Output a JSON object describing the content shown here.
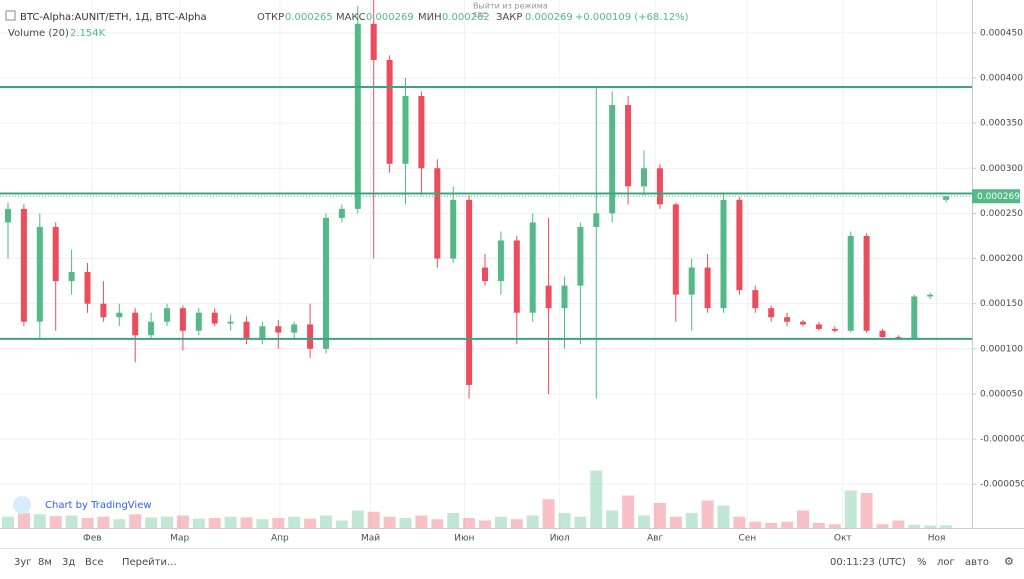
{
  "chart_data": {
    "type": "candlestick",
    "title": "BTC-Alpha:AUNIT/ETH, 1Д, BTC-Alpha",
    "open_label": "ОТКР",
    "high_label": "МАКС",
    "low_label": "МИН",
    "close_label": "ЗАКР",
    "change": "+0.000109 (+68.12%)",
    "volume_title": "Volume (20)",
    "volume_value": "2.154K",
    "replay_exit": "Выйти из режима",
    "replay_key": "ESC",
    "watermark": "Chart by TradingView",
    "up_color": "#53b987",
    "down_color": "#eb4d5c",
    "line_color": "#3aa57f",
    "ylim": [
      -9.85e-05,
      0.0004864
    ],
    "yticks": [
      {
        "value": 0.00045,
        "label": "0.000450"
      },
      {
        "value": 0.0004,
        "label": "0.000400"
      },
      {
        "value": 0.00035,
        "label": "0.000350"
      },
      {
        "value": 0.0003,
        "label": "0.000300"
      },
      {
        "value": 0.00025,
        "label": "0.000250"
      },
      {
        "value": 0.0002,
        "label": "0.000200"
      },
      {
        "value": 0.00015,
        "label": "0.000150"
      },
      {
        "value": 0.0001,
        "label": "0.000100"
      },
      {
        "value": 5e-05,
        "label": "0.000050"
      },
      {
        "value": 0,
        "label": "-0.000000"
      },
      {
        "value": -5e-05,
        "label": "-0.000050"
      }
    ],
    "xticks": [
      {
        "value": 5.3,
        "label": "Фев"
      },
      {
        "value": 10.8,
        "label": "Мар"
      },
      {
        "value": 17.1,
        "label": "Апр"
      },
      {
        "value": 22.8,
        "label": "Май"
      },
      {
        "value": 28.7,
        "label": "Июн"
      },
      {
        "value": 34.7,
        "label": "Июл"
      },
      {
        "value": 40.7,
        "label": "Авг"
      },
      {
        "value": 46.5,
        "label": "Сен"
      },
      {
        "value": 52.5,
        "label": "Окт"
      },
      {
        "value": 58.4,
        "label": "Ноя"
      }
    ],
    "hlines": [
      0.00039,
      0.000272,
      0.000111
    ],
    "grid": true,
    "open": [
      0.00024,
      0.000255,
      0.00013,
      0.000235,
      0.000175,
      0.000185,
      0.00015,
      0.000135,
      0.00014,
      0.000115,
      0.00013,
      0.000145,
      0.00012,
      0.00014,
      0.000128,
      0.00013,
      0.000112,
      0.000125,
      0.000118,
      0.000127,
      0.0001,
      0.000245,
      0.000255,
      0.00046,
      0.00042,
      0.000305,
      0.00038,
      0.0003,
      0.0002,
      0.000265,
      0.00019,
      0.000175,
      0.00022,
      0.00014,
      0.00017,
      0.000145,
      0.00017,
      0.000235,
      0.00025,
      0.00037,
      0.00028,
      0.0003,
      0.00026,
      0.00016,
      0.00019,
      0.000145,
      0.000265,
      0.000165,
      0.000145,
      0.000135,
      0.00013,
      0.000127,
      0.000122,
      0.00012,
      0.000225,
      0.00012,
      0.000113,
      0.000112,
      0.000158,
      0.000265
    ],
    "high": [
      0.000262,
      0.00026,
      0.00025,
      0.00024,
      0.00021,
      0.000195,
      0.000175,
      0.00015,
      0.000145,
      0.00014,
      0.00015,
      0.000148,
      0.000145,
      0.000145,
      0.000138,
      0.000136,
      0.00013,
      0.000132,
      0.00013,
      0.00015,
      0.00025,
      0.00026,
      0.00048,
      0.00049,
      0.000425,
      0.0004,
      0.000385,
      0.00031,
      0.00028,
      0.00027,
      0.000205,
      0.00023,
      0.000225,
      0.00025,
      0.000245,
      0.00018,
      0.00024,
      0.00039,
      0.000385,
      0.00038,
      0.00032,
      0.000305,
      0.000262,
      0.0002,
      0.000205,
      0.000272,
      0.000268,
      0.00017,
      0.000148,
      0.00014,
      0.000132,
      0.00013,
      0.000125,
      0.00023,
      0.000228,
      0.000122,
      0.000115,
      0.00016,
      0.000162,
      0.000269
    ],
    "low": [
      0.0002,
      0.000125,
      0.00011,
      0.00012,
      0.00016,
      0.00014,
      0.00013,
      0.000125,
      8.5e-05,
      0.00011,
      0.000125,
      9.8e-05,
      0.000115,
      0.000125,
      0.00012,
      0.000105,
      0.000105,
      0.0001,
      0.00011,
      9e-05,
      9.5e-05,
      0.00024,
      0.00025,
      0.0002,
      0.000295,
      0.00026,
      0.00027,
      0.00019,
      0.000195,
      4.5e-05,
      0.00017,
      0.00016,
      0.000105,
      0.00013,
      5e-05,
      0.0001,
      0.000105,
      4.5e-05,
      0.00024,
      0.00026,
      0.00027,
      0.000255,
      0.00013,
      0.00012,
      0.00014,
      0.00014,
      0.00016,
      0.00014,
      0.00013,
      0.000125,
      0.000125,
      0.00012,
      0.000118,
      0.000118,
      0.000118,
      0.000112,
      0.00011,
      0.00011,
      0.000155,
      0.000262
    ],
    "close": [
      0.000255,
      0.00013,
      0.000235,
      0.000175,
      0.000185,
      0.00015,
      0.000135,
      0.00014,
      0.000115,
      0.00013,
      0.000145,
      0.00012,
      0.00014,
      0.000128,
      0.00013,
      0.000112,
      0.000125,
      0.000118,
      0.000127,
      0.0001,
      0.000245,
      0.000255,
      0.00046,
      0.00042,
      0.000305,
      0.00038,
      0.0003,
      0.0002,
      0.000265,
      6e-05,
      0.000175,
      0.00022,
      0.00014,
      0.00024,
      0.000145,
      0.00017,
      0.000235,
      0.00025,
      0.00037,
      0.00028,
      0.0003,
      0.00026,
      0.00016,
      0.00019,
      0.000145,
      0.000265,
      0.000165,
      0.000145,
      0.000135,
      0.00013,
      0.000127,
      0.000122,
      0.00012,
      0.000225,
      0.00012,
      0.000113,
      0.000112,
      0.000158,
      0.00016,
      0.000269
    ],
    "volume": [
      9000,
      12000,
      11000,
      9500,
      10000,
      8000,
      9000,
      7000,
      11000,
      8500,
      9000,
      10000,
      7500,
      8000,
      9000,
      8500,
      7000,
      8000,
      9000,
      7500,
      10000,
      6000,
      14000,
      13000,
      9000,
      8000,
      10000,
      7000,
      12000,
      8000,
      6000,
      9000,
      7000,
      10000,
      23000,
      12000,
      9000,
      46000,
      14000,
      26000,
      10000,
      20000,
      9000,
      12000,
      22000,
      18000,
      9000,
      5000,
      4000,
      5000,
      14000,
      4000,
      3000,
      30000,
      28000,
      3000,
      6000,
      2500,
      2000,
      2154
    ],
    "vlim": [
      0,
      60000
    ],
    "toolbar": [
      "3уг",
      "8м",
      "3д",
      "Все"
    ],
    "goto": "Перейти...",
    "clock": "00:11:23 (UTC)",
    "scale_buttons": [
      "%",
      "лог",
      "авто"
    ]
  }
}
